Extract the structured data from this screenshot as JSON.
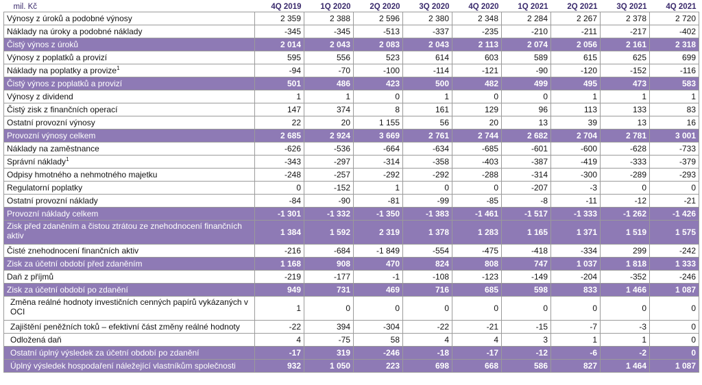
{
  "table": {
    "unit_label": "mil. Kč",
    "columns": [
      "4Q 2019",
      "1Q 2020",
      "2Q 2020",
      "3Q 2020",
      "4Q 2020",
      "1Q 2021",
      "2Q 2021",
      "3Q 2021",
      "4Q 2021"
    ],
    "rows": [
      {
        "label": "Výnosy z úroků a podobné výnosy",
        "values": [
          "2 359",
          "2 388",
          "2 596",
          "2 380",
          "2 348",
          "2 284",
          "2 267",
          "2 378",
          "2 720"
        ]
      },
      {
        "label": "Náklady na úroky a podobné náklady",
        "values": [
          "-345",
          "-345",
          "-513",
          "-337",
          "-235",
          "-210",
          "-211",
          "-217",
          "-402"
        ]
      },
      {
        "label": "Čistý výnos z úroků",
        "highlight": true,
        "values": [
          "2 014",
          "2 043",
          "2 083",
          "2 043",
          "2 113",
          "2 074",
          "2 056",
          "2 161",
          "2 318"
        ]
      },
      {
        "label": "Výnosy z poplatků a provizí",
        "values": [
          "595",
          "556",
          "523",
          "614",
          "603",
          "589",
          "615",
          "625",
          "699"
        ]
      },
      {
        "label": "Náklady na poplatky a provize",
        "note": "1",
        "values": [
          "-94",
          "-70",
          "-100",
          "-114",
          "-121",
          "-90",
          "-120",
          "-152",
          "-116"
        ]
      },
      {
        "label": "Čistý výnos z poplatků a provizí",
        "highlight": true,
        "values": [
          "501",
          "486",
          "423",
          "500",
          "482",
          "499",
          "495",
          "473",
          "583"
        ]
      },
      {
        "label": "Výnosy z dividend",
        "values": [
          "1",
          "1",
          "0",
          "1",
          "0",
          "0",
          "1",
          "1",
          "1"
        ]
      },
      {
        "label": "Čistý zisk z finančních operací",
        "values": [
          "147",
          "374",
          "8",
          "161",
          "129",
          "96",
          "113",
          "133",
          "83"
        ]
      },
      {
        "label": "Ostatní provozní výnosy",
        "values": [
          "22",
          "20",
          "1 155",
          "56",
          "20",
          "13",
          "39",
          "13",
          "16"
        ]
      },
      {
        "label": "Provozní výnosy celkem",
        "highlight": true,
        "values": [
          "2 685",
          "2 924",
          "3 669",
          "2 761",
          "2 744",
          "2 682",
          "2 704",
          "2 781",
          "3 001"
        ]
      },
      {
        "label": "Náklady na zaměstnance",
        "values": [
          "-626",
          "-536",
          "-664",
          "-634",
          "-685",
          "-601",
          "-600",
          "-628",
          "-733"
        ]
      },
      {
        "label": "Správní náklady",
        "note": "1",
        "values": [
          "-343",
          "-297",
          "-314",
          "-358",
          "-403",
          "-387",
          "-419",
          "-333",
          "-379"
        ]
      },
      {
        "label": "Odpisy hmotného a nehmotného majetku",
        "values": [
          "-248",
          "-257",
          "-292",
          "-292",
          "-288",
          "-314",
          "-300",
          "-289",
          "-293"
        ]
      },
      {
        "label": "Regulatorní poplatky",
        "values": [
          "0",
          "-152",
          "1",
          "0",
          "0",
          "-207",
          "-3",
          "0",
          "0"
        ]
      },
      {
        "label": "Ostatní provozní náklady",
        "values": [
          "-84",
          "-90",
          "-81",
          "-99",
          "-85",
          "-8",
          "-11",
          "-12",
          "-21"
        ]
      },
      {
        "label": "Provozní náklady celkem",
        "highlight": true,
        "values": [
          "-1 301",
          "-1 332",
          "-1 350",
          "-1 383",
          "-1 461",
          "-1 517",
          "-1 333",
          "-1 262",
          "-1 426"
        ]
      },
      {
        "label": "Zisk před zdaněním a čistou ztrátou ze znehodnocení finančních aktiv",
        "highlight": true,
        "tall": true,
        "values": [
          "1 384",
          "1 592",
          "2 319",
          "1 378",
          "1 283",
          "1 165",
          "1 371",
          "1 519",
          "1 575"
        ]
      },
      {
        "label": "Čisté znehodnocení finančních aktiv",
        "values": [
          "-216",
          "-684",
          "-1 849",
          "-554",
          "-475",
          "-418",
          "-334",
          "299",
          "-242"
        ]
      },
      {
        "label": "Zisk za účetní období před zdaněním",
        "highlight": true,
        "values": [
          "1 168",
          "908",
          "470",
          "824",
          "808",
          "747",
          "1 037",
          "1 818",
          "1 333"
        ]
      },
      {
        "label": "Daň z příjmů",
        "values": [
          "-219",
          "-177",
          "-1",
          "-108",
          "-123",
          "-149",
          "-204",
          "-352",
          "-246"
        ]
      },
      {
        "label": "Zisk za účetní období po zdanění",
        "highlight": true,
        "values": [
          "949",
          "731",
          "469",
          "716",
          "685",
          "598",
          "833",
          "1 466",
          "1 087"
        ]
      },
      {
        "label": "Změna reálné hodnoty investičních cenných papírů vykázaných v OCI",
        "tall": true,
        "indent": true,
        "values": [
          "1",
          "0",
          "0",
          "0",
          "0",
          "0",
          "0",
          "0",
          "0"
        ]
      },
      {
        "label": "Zajištění peněžních toků – efektivní část změny reálné hodnoty",
        "indent": true,
        "values": [
          "-22",
          "394",
          "-304",
          "-22",
          "-21",
          "-15",
          "-7",
          "-3",
          "0"
        ]
      },
      {
        "label": "Odložená daň",
        "indent": true,
        "values": [
          "4",
          "-75",
          "58",
          "4",
          "4",
          "3",
          "1",
          "1",
          "0"
        ]
      },
      {
        "label": "Ostatní úplný výsledek za účetní období po zdanění",
        "highlight": true,
        "indent": true,
        "values": [
          "-17",
          "319",
          "-246",
          "-18",
          "-17",
          "-12",
          "-6",
          "-2",
          "0"
        ]
      },
      {
        "label": "Úplný výsledek hospodaření náležející vlastníkům společnosti",
        "highlight": true,
        "indent": true,
        "values": [
          "932",
          "1 050",
          "223",
          "698",
          "668",
          "586",
          "827",
          "1 464",
          "1 087"
        ]
      }
    ]
  },
  "colors": {
    "highlight_row_bg": "#8e7ab5",
    "header_text": "#3a2a6c",
    "border": "#9a9a9a"
  }
}
